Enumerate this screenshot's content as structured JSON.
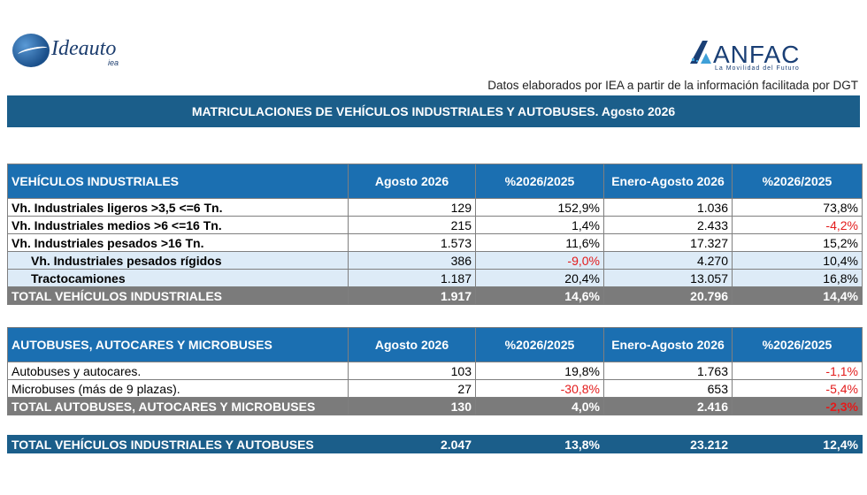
{
  "logos": {
    "left": {
      "name": "Ideauto",
      "sub": "iea"
    },
    "right": {
      "name": "ANFAC",
      "tagline": "La Movilidad del Futuro"
    }
  },
  "source_note": "Datos elaborados por IEA a partir de la información facilitada por DGT",
  "title": "MATRICULACIONES DE VEHÍCULOS INDUSTRIALES Y AUTOBUSES.  Agosto 2026",
  "industrial": {
    "headers": [
      "VEHÍCULOS INDUSTRIALES",
      "Agosto 2026",
      "%2026/2025",
      "Enero-Agosto 2026",
      "%2026/2025"
    ],
    "rows": [
      [
        "Vh. Industriales ligeros >3,5 <=6 Tn.",
        "129",
        "152,9%",
        "1.036",
        "73,8%"
      ],
      [
        "Vh. Industriales medios >6  <=16 Tn.",
        "215",
        "1,4%",
        "2.433",
        "-4,2%"
      ],
      [
        "Vh. Industriales  pesados >16 Tn.",
        "1.573",
        "11,6%",
        "17.327",
        "15,2%"
      ],
      [
        "Vh. Industriales pesados rígidos",
        "386",
        "-9,0%",
        "4.270",
        "10,4%"
      ],
      [
        "Tractocamiones",
        "1.187",
        "20,4%",
        "13.057",
        "16,8%"
      ]
    ],
    "total": [
      "TOTAL VEHÍCULOS INDUSTRIALES",
      "1.917",
      "14,6%",
      "20.796",
      "14,4%"
    ]
  },
  "buses": {
    "headers": [
      "AUTOBUSES, AUTOCARES Y MICROBUSES",
      "Agosto 2026",
      "%2026/2025",
      "Enero-Agosto 2026",
      "%2026/2025"
    ],
    "rows": [
      [
        "Autobuses y autocares.",
        "103",
        "19,8%",
        "1.763",
        "-1,1%"
      ],
      [
        "Microbuses (más de 9 plazas).",
        "27",
        "-30,8%",
        "653",
        "-5,4%"
      ]
    ],
    "total": [
      "TOTAL AUTOBUSES, AUTOCARES Y MICROBUSES",
      "130",
      "4,0%",
      "2.416",
      "-2,3%"
    ]
  },
  "grand_total": [
    "TOTAL VEHÍCULOS INDUSTRIALES Y AUTOBUSES",
    "2.047",
    "13,8%",
    "23.212",
    "12,4%"
  ],
  "colors": {
    "title_bar": "#1b5e8a",
    "header": "#1b6fb1",
    "total_row": "#7b7b7b",
    "light_row": "#ddebf7",
    "negative": "#e31b1b"
  }
}
